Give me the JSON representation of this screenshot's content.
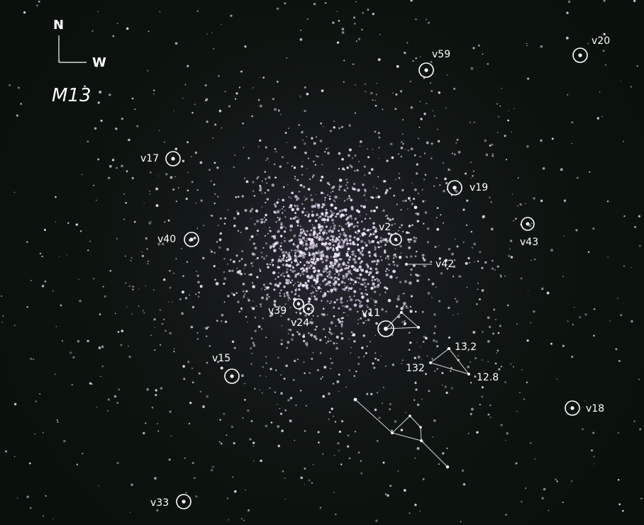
{
  "compass": {
    "north": "N",
    "west": "W"
  },
  "object_name": "M13",
  "variable_labels": {
    "v2": "v2",
    "v11": "v11",
    "v15": "v15",
    "v17": "v17",
    "v18": "v18",
    "v19": "v19",
    "v20": "v20",
    "v24": "v24",
    "v33": "v33",
    "v39": "v39",
    "v40": "v40",
    "v42": "v42",
    "v43": "v43",
    "v59": "v59"
  },
  "magnitude_labels": {
    "m132": "132",
    "m13_2": "13.2",
    "m12_8": "12.8"
  },
  "colors": {
    "background": "#0b120d",
    "star": "#f3e6ff",
    "marker": "#ffffff"
  }
}
